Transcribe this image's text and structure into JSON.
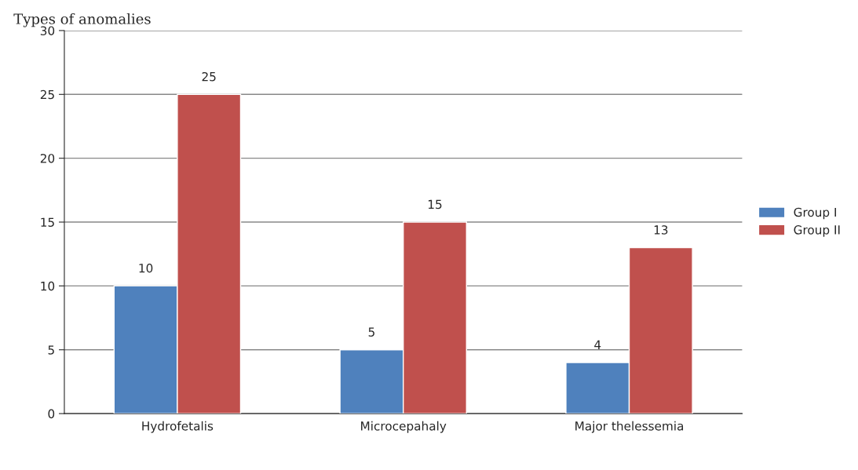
{
  "chart_data": {
    "type": "bar",
    "title": "Types of anomalies",
    "categories": [
      "Hydrofetalis",
      "Microcepahaly",
      "Major thelessemia"
    ],
    "series": [
      {
        "name": "Group I",
        "color": "#4f81bd",
        "values": [
          10,
          5,
          4
        ]
      },
      {
        "name": "Group II",
        "color": "#c0504d",
        "values": [
          25,
          15,
          13
        ]
      }
    ],
    "ylim": [
      0,
      30
    ],
    "yticks": [
      0,
      5,
      10,
      15,
      20,
      25,
      30
    ],
    "grid": "y",
    "legend": "right",
    "data_labels": true
  }
}
